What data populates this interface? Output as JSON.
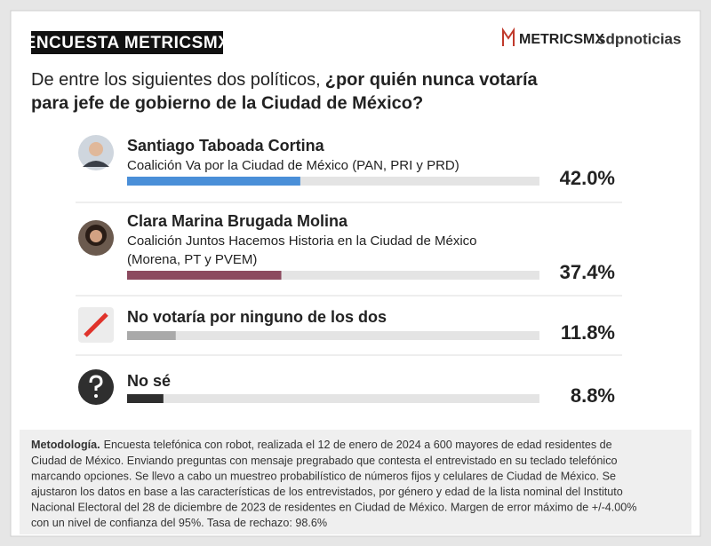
{
  "chart_data": {
    "type": "bar",
    "header": "ENCUESTA METRICSMX",
    "logos": [
      "METRICSMX",
      "sdpnoticias"
    ],
    "question": [
      "De entre los siguientes dos políticos,",
      "¿por quién nunca votaría",
      "para jefe de gobierno de la Ciudad de México?"
    ],
    "categories": [
      "Santiago Taboada Cortina",
      "Clara Marina Brugada Molina",
      "No votaría por ninguno de los dos",
      "No sé"
    ],
    "subtitles": [
      [
        "Coalición Va por la Ciudad de México (PAN, PRI y PRD)"
      ],
      [
        "Coalición Juntos Hacemos Historia en la Ciudad de México",
        "(Morena, PT y PVEM)"
      ],
      null,
      null
    ],
    "values": [
      42.0,
      37.4,
      11.8,
      8.8
    ],
    "value_labels": [
      "42.0%",
      "37.4%",
      "11.8%",
      "8.8%"
    ],
    "colors": [
      "#4a8fd8",
      "#8c4a5f",
      "#a9a9a9",
      "#2e2e2e"
    ],
    "xlim": [
      0,
      100
    ],
    "methodology": {
      "label": "Metodología.",
      "lines": [
        "Encuesta telefónica con robot, realizada el 12 de enero de 2024 a 600 mayores de edad residentes de",
        "Ciudad de México. Enviando preguntas con mensaje pregrabado que contesta el entrevistado en su teclado telefónico",
        "marcando opciones. Se llevo a cabo un muestreo probabilístico de números fijos y celulares de Ciudad de México. Se",
        "ajustaron los datos en base a las características de los entrevistados, por género y edad de la lista nominal del Instituto",
        "Nacional Electoral del 28 de diciembre de 2023 de residentes en Ciudad de México. Margen de error máximo de +/-4.00%",
        "con un nivel de confianza del 95%. Tasa de rechazo: 98.6%"
      ]
    }
  }
}
